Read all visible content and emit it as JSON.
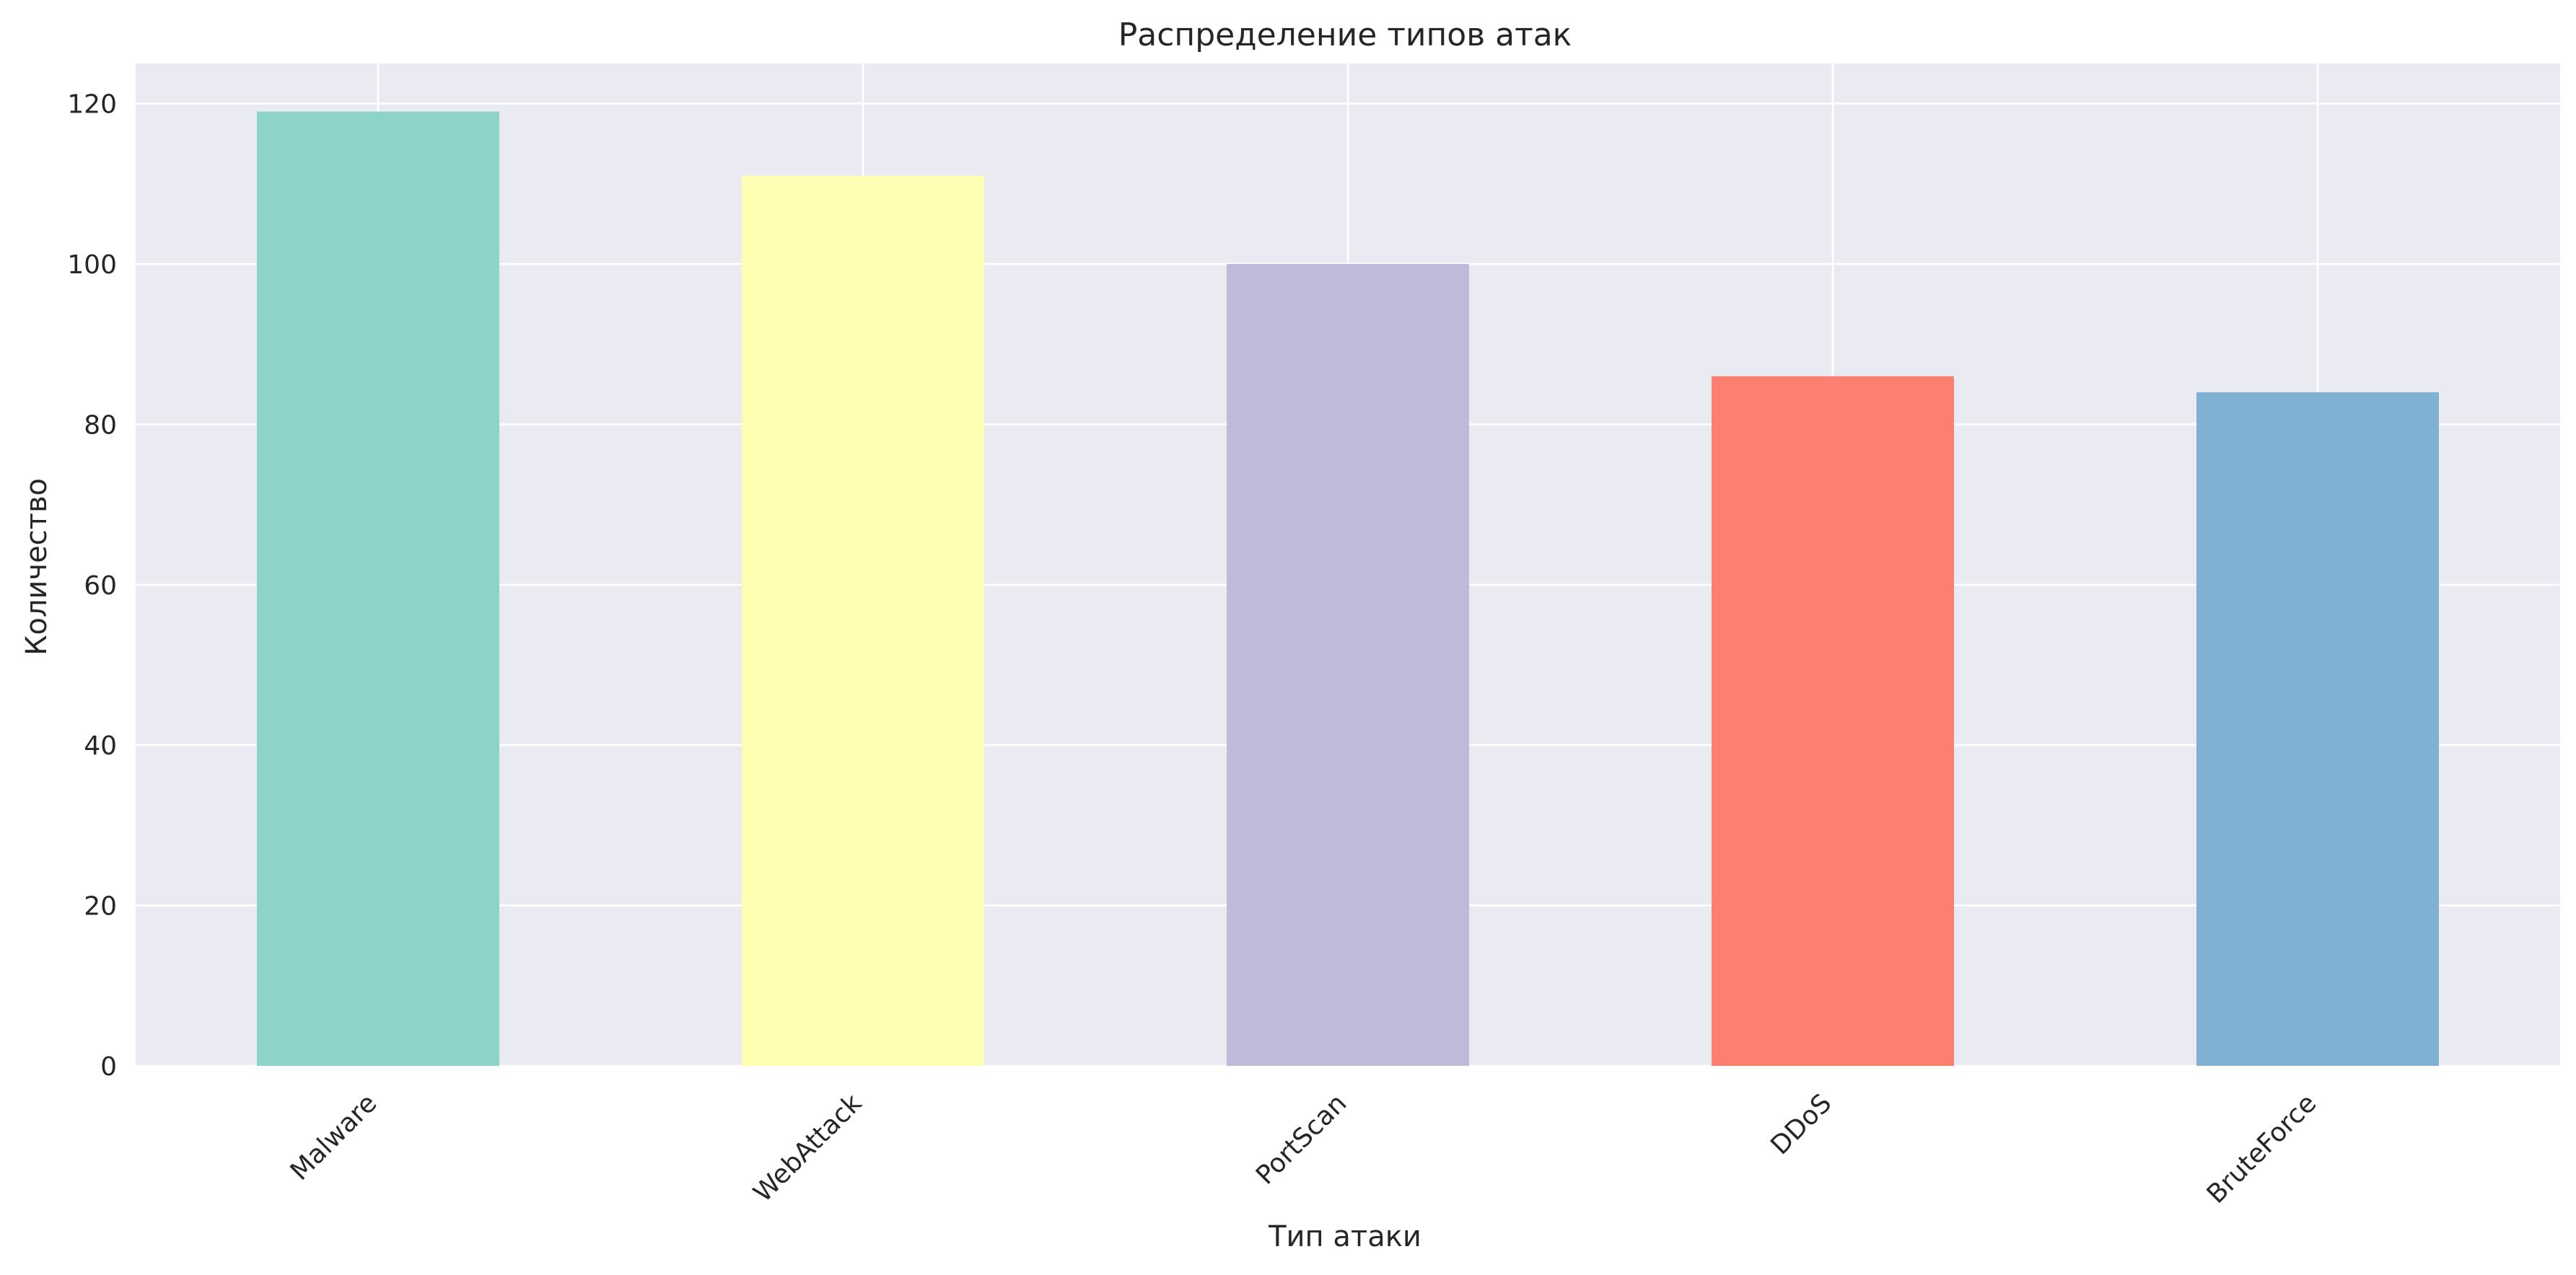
{
  "chart_data": {
    "type": "bar",
    "title": "Распределение типов атак",
    "xlabel": "Тип атаки",
    "ylabel": "Количество",
    "categories": [
      "Malware",
      "WebAttack",
      "PortScan",
      "DDoS",
      "BruteForce"
    ],
    "values": [
      119,
      111,
      100,
      86,
      84
    ],
    "colors": [
      "#8dd3c7",
      "#ffffb3",
      "#bebada",
      "#fb8072",
      "#80b1d3"
    ],
    "ylim": [
      0,
      125
    ],
    "yticks": [
      0,
      20,
      40,
      60,
      80,
      100,
      120
    ],
    "grid": true,
    "background": "#eaeaf2",
    "legend": "none"
  }
}
